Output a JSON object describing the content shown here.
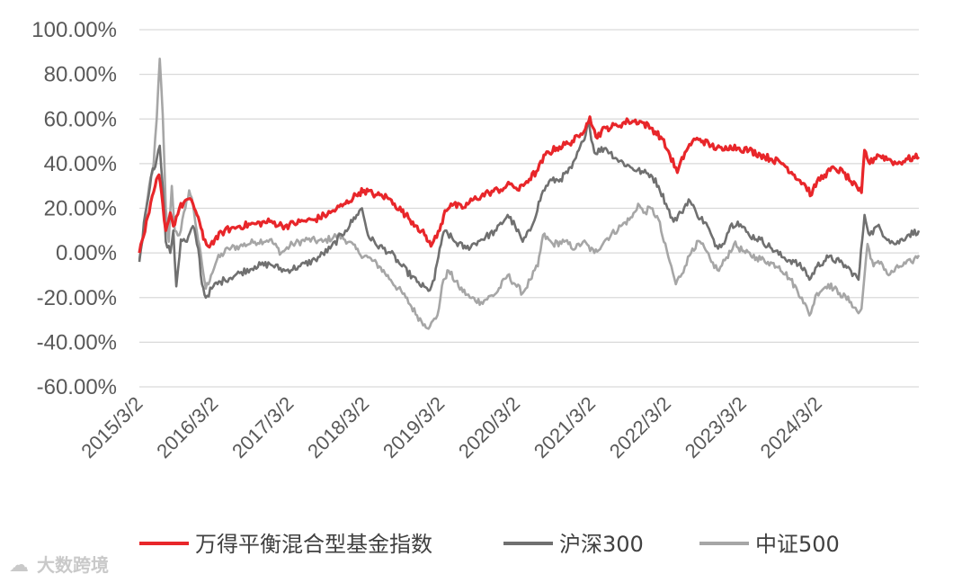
{
  "chart_data": {
    "type": "line",
    "title": "",
    "xlabel": "",
    "ylabel": "",
    "ylim": [
      -60,
      100
    ],
    "y_ticks": [
      100,
      80,
      60,
      40,
      20,
      0,
      -20,
      -40,
      -60
    ],
    "y_tick_labels": [
      "100.00%",
      "80.00%",
      "60.00%",
      "40.00%",
      "20.00%",
      "0.00%",
      "-20.00%",
      "-40.00%",
      "-60.00%"
    ],
    "x_range": [
      2015.17,
      2025.5
    ],
    "x_ticks": [
      2015.17,
      2016.17,
      2017.17,
      2018.17,
      2019.17,
      2020.17,
      2021.17,
      2022.17,
      2023.17,
      2024.17
    ],
    "x_tick_labels": [
      "2015/3/2",
      "2016/3/2",
      "2017/3/2",
      "2018/3/2",
      "2019/3/2",
      "2020/3/2",
      "2021/3/2",
      "2022/3/2",
      "2023/3/2",
      "2024/3/2"
    ],
    "grid": "horizontal",
    "legend_position": "bottom",
    "series": [
      {
        "name": "万得平衡混合型基金指数",
        "color": "#e8262a",
        "points": [
          [
            2015.17,
            0
          ],
          [
            2015.3,
            18
          ],
          [
            2015.38,
            30
          ],
          [
            2015.43,
            35
          ],
          [
            2015.48,
            22
          ],
          [
            2015.52,
            10
          ],
          [
            2015.58,
            18
          ],
          [
            2015.62,
            12
          ],
          [
            2015.7,
            20
          ],
          [
            2015.8,
            24
          ],
          [
            2015.88,
            22
          ],
          [
            2015.95,
            16
          ],
          [
            2016.02,
            6
          ],
          [
            2016.08,
            3
          ],
          [
            2016.17,
            6
          ],
          [
            2016.3,
            10
          ],
          [
            2016.5,
            12
          ],
          [
            2016.7,
            13
          ],
          [
            2016.9,
            14
          ],
          [
            2017.1,
            12
          ],
          [
            2017.3,
            14
          ],
          [
            2017.5,
            15
          ],
          [
            2017.7,
            18
          ],
          [
            2017.9,
            22
          ],
          [
            2018.08,
            27
          ],
          [
            2018.15,
            28
          ],
          [
            2018.3,
            26
          ],
          [
            2018.45,
            25
          ],
          [
            2018.55,
            22
          ],
          [
            2018.7,
            17
          ],
          [
            2018.85,
            12
          ],
          [
            2018.95,
            8
          ],
          [
            2019.0,
            5
          ],
          [
            2019.05,
            4
          ],
          [
            2019.15,
            10
          ],
          [
            2019.22,
            19
          ],
          [
            2019.3,
            22
          ],
          [
            2019.45,
            20
          ],
          [
            2019.6,
            24
          ],
          [
            2019.8,
            27
          ],
          [
            2020.0,
            29
          ],
          [
            2020.1,
            31
          ],
          [
            2020.2,
            28
          ],
          [
            2020.3,
            32
          ],
          [
            2020.45,
            37
          ],
          [
            2020.55,
            44
          ],
          [
            2020.7,
            47
          ],
          [
            2020.85,
            49
          ],
          [
            2021.0,
            52
          ],
          [
            2021.1,
            58
          ],
          [
            2021.14,
            61
          ],
          [
            2021.22,
            52
          ],
          [
            2021.35,
            56
          ],
          [
            2021.5,
            57
          ],
          [
            2021.65,
            59
          ],
          [
            2021.8,
            59
          ],
          [
            2021.95,
            56
          ],
          [
            2022.08,
            52
          ],
          [
            2022.2,
            44
          ],
          [
            2022.3,
            36
          ],
          [
            2022.4,
            45
          ],
          [
            2022.5,
            50
          ],
          [
            2022.6,
            51
          ],
          [
            2022.75,
            48
          ],
          [
            2022.9,
            46
          ],
          [
            2023.0,
            48
          ],
          [
            2023.1,
            47
          ],
          [
            2023.25,
            46
          ],
          [
            2023.4,
            44
          ],
          [
            2023.55,
            42
          ],
          [
            2023.7,
            40
          ],
          [
            2023.85,
            35
          ],
          [
            2024.0,
            30
          ],
          [
            2024.08,
            26
          ],
          [
            2024.15,
            32
          ],
          [
            2024.25,
            35
          ],
          [
            2024.38,
            38
          ],
          [
            2024.5,
            36
          ],
          [
            2024.6,
            32
          ],
          [
            2024.7,
            28
          ],
          [
            2024.74,
            27
          ],
          [
            2024.78,
            46
          ],
          [
            2024.85,
            40
          ],
          [
            2024.95,
            44
          ],
          [
            2025.1,
            42
          ],
          [
            2025.2,
            40
          ],
          [
            2025.35,
            42
          ],
          [
            2025.5,
            43
          ]
        ]
      },
      {
        "name": "沪深300",
        "color": "#707070",
        "points": [
          [
            2015.17,
            -4
          ],
          [
            2015.25,
            18
          ],
          [
            2015.33,
            35
          ],
          [
            2015.4,
            42
          ],
          [
            2015.44,
            48
          ],
          [
            2015.48,
            30
          ],
          [
            2015.52,
            5
          ],
          [
            2015.58,
            0
          ],
          [
            2015.62,
            10
          ],
          [
            2015.66,
            -15
          ],
          [
            2015.72,
            6
          ],
          [
            2015.8,
            5
          ],
          [
            2015.88,
            12
          ],
          [
            2015.95,
            2
          ],
          [
            2016.0,
            -14
          ],
          [
            2016.05,
            -20
          ],
          [
            2016.15,
            -15
          ],
          [
            2016.3,
            -12
          ],
          [
            2016.5,
            -9
          ],
          [
            2016.7,
            -6
          ],
          [
            2016.9,
            -5
          ],
          [
            2017.1,
            -8
          ],
          [
            2017.3,
            -6
          ],
          [
            2017.5,
            -3
          ],
          [
            2017.7,
            2
          ],
          [
            2017.9,
            10
          ],
          [
            2018.05,
            17
          ],
          [
            2018.12,
            20
          ],
          [
            2018.2,
            8
          ],
          [
            2018.3,
            4
          ],
          [
            2018.5,
            0
          ],
          [
            2018.65,
            -6
          ],
          [
            2018.85,
            -13
          ],
          [
            2019.0,
            -17
          ],
          [
            2019.08,
            -12
          ],
          [
            2019.15,
            2
          ],
          [
            2019.22,
            10
          ],
          [
            2019.35,
            5
          ],
          [
            2019.5,
            2
          ],
          [
            2019.7,
            6
          ],
          [
            2019.9,
            10
          ],
          [
            2020.05,
            17
          ],
          [
            2020.15,
            12
          ],
          [
            2020.25,
            5
          ],
          [
            2020.35,
            10
          ],
          [
            2020.5,
            26
          ],
          [
            2020.6,
            32
          ],
          [
            2020.75,
            33
          ],
          [
            2020.9,
            38
          ],
          [
            2021.05,
            50
          ],
          [
            2021.12,
            59
          ],
          [
            2021.2,
            45
          ],
          [
            2021.35,
            47
          ],
          [
            2021.5,
            42
          ],
          [
            2021.7,
            38
          ],
          [
            2021.85,
            36
          ],
          [
            2021.95,
            35
          ],
          [
            2022.05,
            30
          ],
          [
            2022.15,
            22
          ],
          [
            2022.25,
            14
          ],
          [
            2022.35,
            18
          ],
          [
            2022.45,
            24
          ],
          [
            2022.55,
            18
          ],
          [
            2022.7,
            12
          ],
          [
            2022.8,
            3
          ],
          [
            2022.9,
            4
          ],
          [
            2023.0,
            12
          ],
          [
            2023.1,
            14
          ],
          [
            2023.25,
            8
          ],
          [
            2023.4,
            6
          ],
          [
            2023.55,
            2
          ],
          [
            2023.7,
            -2
          ],
          [
            2023.85,
            -4
          ],
          [
            2024.0,
            -8
          ],
          [
            2024.05,
            -12
          ],
          [
            2024.15,
            -6
          ],
          [
            2024.3,
            -2
          ],
          [
            2024.45,
            -4
          ],
          [
            2024.6,
            -8
          ],
          [
            2024.7,
            -12
          ],
          [
            2024.75,
            6
          ],
          [
            2024.78,
            17
          ],
          [
            2024.85,
            8
          ],
          [
            2024.95,
            12
          ],
          [
            2025.1,
            6
          ],
          [
            2025.2,
            4
          ],
          [
            2025.35,
            8
          ],
          [
            2025.5,
            10
          ]
        ]
      },
      {
        "name": "中证500",
        "color": "#a6a6a6",
        "points": [
          [
            2015.17,
            -3
          ],
          [
            2015.25,
            15
          ],
          [
            2015.3,
            30
          ],
          [
            2015.36,
            40
          ],
          [
            2015.4,
            60
          ],
          [
            2015.44,
            87
          ],
          [
            2015.48,
            62
          ],
          [
            2015.52,
            20
          ],
          [
            2015.56,
            5
          ],
          [
            2015.6,
            30
          ],
          [
            2015.64,
            10
          ],
          [
            2015.7,
            8
          ],
          [
            2015.78,
            20
          ],
          [
            2015.83,
            28
          ],
          [
            2015.88,
            22
          ],
          [
            2015.93,
            10
          ],
          [
            2016.0,
            -5
          ],
          [
            2016.05,
            -16
          ],
          [
            2016.12,
            -10
          ],
          [
            2016.2,
            -3
          ],
          [
            2016.35,
            2
          ],
          [
            2016.5,
            3
          ],
          [
            2016.7,
            5
          ],
          [
            2016.9,
            6
          ],
          [
            2017.05,
            0
          ],
          [
            2017.2,
            4
          ],
          [
            2017.4,
            6
          ],
          [
            2017.6,
            5
          ],
          [
            2017.8,
            8
          ],
          [
            2017.95,
            5
          ],
          [
            2018.08,
            0
          ],
          [
            2018.2,
            -2
          ],
          [
            2018.35,
            -6
          ],
          [
            2018.5,
            -12
          ],
          [
            2018.7,
            -20
          ],
          [
            2018.85,
            -28
          ],
          [
            2018.95,
            -32
          ],
          [
            2019.02,
            -33
          ],
          [
            2019.12,
            -28
          ],
          [
            2019.2,
            -12
          ],
          [
            2019.27,
            -8
          ],
          [
            2019.4,
            -15
          ],
          [
            2019.55,
            -20
          ],
          [
            2019.7,
            -22
          ],
          [
            2019.9,
            -18
          ],
          [
            2020.05,
            -10
          ],
          [
            2020.15,
            -14
          ],
          [
            2020.25,
            -18
          ],
          [
            2020.35,
            -12
          ],
          [
            2020.45,
            -6
          ],
          [
            2020.52,
            8
          ],
          [
            2020.65,
            4
          ],
          [
            2020.8,
            5
          ],
          [
            2020.95,
            2
          ],
          [
            2021.05,
            5
          ],
          [
            2021.2,
            0
          ],
          [
            2021.35,
            6
          ],
          [
            2021.55,
            12
          ],
          [
            2021.7,
            16
          ],
          [
            2021.78,
            22
          ],
          [
            2021.85,
            18
          ],
          [
            2021.95,
            20
          ],
          [
            2022.05,
            15
          ],
          [
            2022.12,
            5
          ],
          [
            2022.2,
            -4
          ],
          [
            2022.28,
            -14
          ],
          [
            2022.4,
            -6
          ],
          [
            2022.5,
            2
          ],
          [
            2022.6,
            5
          ],
          [
            2022.75,
            -4
          ],
          [
            2022.85,
            -8
          ],
          [
            2022.95,
            -2
          ],
          [
            2023.05,
            4
          ],
          [
            2023.2,
            0
          ],
          [
            2023.35,
            -2
          ],
          [
            2023.5,
            -4
          ],
          [
            2023.65,
            -6
          ],
          [
            2023.8,
            -12
          ],
          [
            2023.95,
            -20
          ],
          [
            2024.05,
            -28
          ],
          [
            2024.15,
            -18
          ],
          [
            2024.3,
            -14
          ],
          [
            2024.45,
            -18
          ],
          [
            2024.6,
            -22
          ],
          [
            2024.7,
            -27
          ],
          [
            2024.74,
            -25
          ],
          [
            2024.78,
            -10
          ],
          [
            2024.82,
            4
          ],
          [
            2024.9,
            -6
          ],
          [
            2025.0,
            -4
          ],
          [
            2025.1,
            -10
          ],
          [
            2025.25,
            -6
          ],
          [
            2025.4,
            -4
          ],
          [
            2025.5,
            -1
          ]
        ]
      }
    ]
  },
  "watermark": {
    "icon": "cloud-logo-icon",
    "text": "大数跨境"
  }
}
